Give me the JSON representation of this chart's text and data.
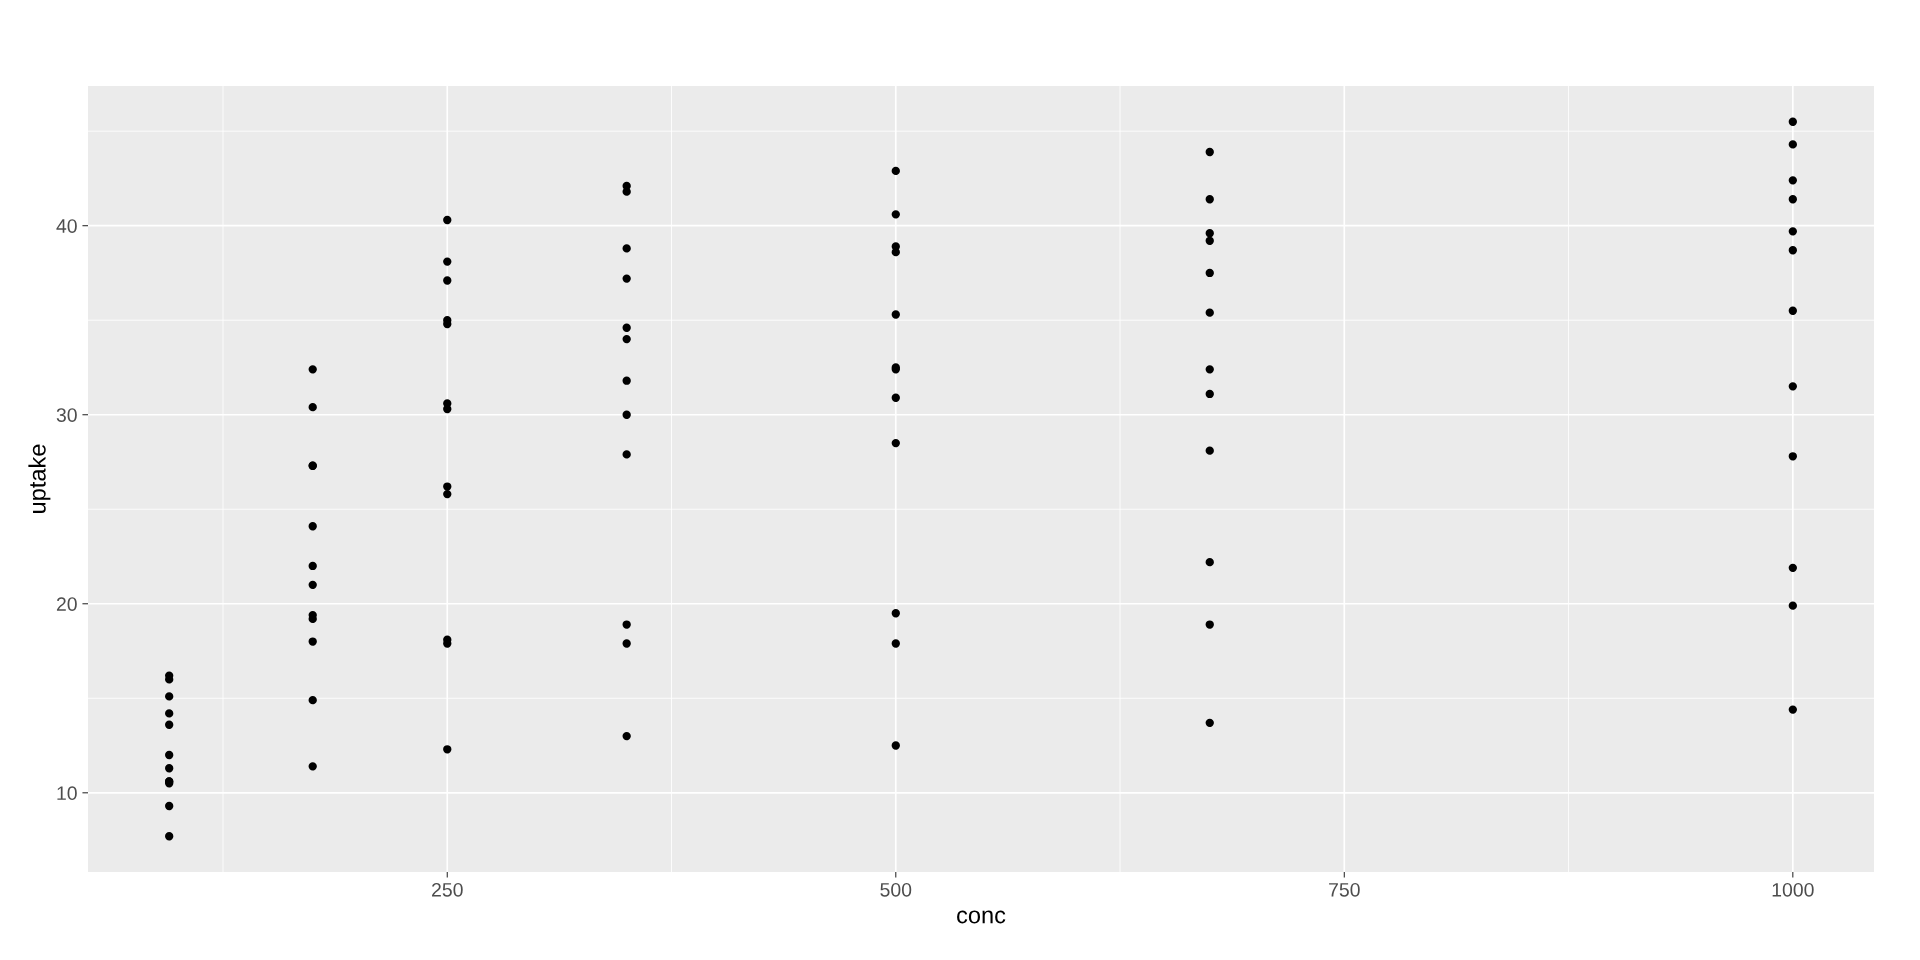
{
  "chart_data": {
    "type": "scatter",
    "xlabel": "conc",
    "ylabel": "uptake",
    "x": [
      95,
      95,
      95,
      95,
      95,
      95,
      95,
      95,
      95,
      95,
      95,
      95,
      175,
      175,
      175,
      175,
      175,
      175,
      175,
      175,
      175,
      175,
      175,
      175,
      250,
      250,
      250,
      250,
      250,
      250,
      250,
      250,
      250,
      250,
      250,
      250,
      350,
      350,
      350,
      350,
      350,
      350,
      350,
      350,
      350,
      350,
      350,
      350,
      500,
      500,
      500,
      500,
      500,
      500,
      500,
      500,
      500,
      500,
      500,
      500,
      675,
      675,
      675,
      675,
      675,
      675,
      675,
      675,
      675,
      675,
      675,
      675,
      1000,
      1000,
      1000,
      1000,
      1000,
      1000,
      1000,
      1000,
      1000,
      1000,
      1000,
      1000
    ],
    "values": [
      16.0,
      13.6,
      16.2,
      14.2,
      9.3,
      15.1,
      10.6,
      12.0,
      11.3,
      10.5,
      7.7,
      10.6,
      30.4,
      27.3,
      32.4,
      24.1,
      27.3,
      21.0,
      19.2,
      22.0,
      19.4,
      14.9,
      11.4,
      18.0,
      34.8,
      37.1,
      40.3,
      30.3,
      35.0,
      38.1,
      26.2,
      30.6,
      25.8,
      18.1,
      12.3,
      17.9,
      37.2,
      41.8,
      42.1,
      34.6,
      38.8,
      34.0,
      30.0,
      31.8,
      27.9,
      18.9,
      13.0,
      17.9,
      35.3,
      40.6,
      42.9,
      32.5,
      38.6,
      38.9,
      30.9,
      32.4,
      28.5,
      19.5,
      12.5,
      17.9,
      39.2,
      41.4,
      43.9,
      35.4,
      37.5,
      39.6,
      32.4,
      31.1,
      28.1,
      22.2,
      13.7,
      18.9,
      39.7,
      44.3,
      45.5,
      38.7,
      42.4,
      41.4,
      35.5,
      31.5,
      27.8,
      21.9,
      14.4,
      19.9
    ],
    "color": "#000000",
    "marker": "circle",
    "grid": true,
    "xlim": [
      49.75,
      1045.25
    ],
    "ylim": [
      5.81,
      47.39
    ],
    "xticks": [
      250,
      500,
      750,
      1000
    ],
    "yticks": [
      10,
      20,
      30,
      40
    ]
  }
}
